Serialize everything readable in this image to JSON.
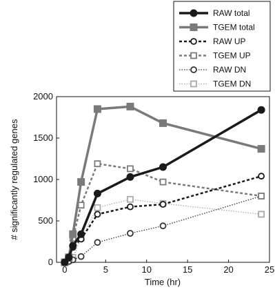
{
  "chart_data": {
    "type": "line",
    "title": "",
    "xlabel": "Time (hr)",
    "ylabel": "# significantly regulated genes",
    "xlim": [
      -1,
      25
    ],
    "ylim": [
      0,
      2000
    ],
    "xticks": [
      0,
      5,
      10,
      15,
      20,
      25
    ],
    "yticks": [
      0,
      500,
      1000,
      1500,
      2000
    ],
    "x": [
      0,
      0.5,
      1,
      2,
      4,
      8,
      12,
      24
    ],
    "grid": false,
    "legend_position": "top-right",
    "series": [
      {
        "name": "RAW total",
        "values": [
          0,
          60,
          200,
          340,
          830,
          1030,
          1150,
          1840
        ],
        "color": "#1a1a1a",
        "dash": "",
        "width": 3.5,
        "marker": "filled-circle"
      },
      {
        "name": "TGEM total",
        "values": [
          0,
          60,
          340,
          970,
          1850,
          1880,
          1680,
          1370
        ],
        "color": "#7a7a7a",
        "dash": "",
        "width": 3.5,
        "marker": "filled-square"
      },
      {
        "name": "RAW UP",
        "values": [
          0,
          50,
          180,
          280,
          580,
          670,
          700,
          1040
        ],
        "color": "#1a1a1a",
        "dash": "4,3",
        "width": 2.5,
        "marker": "open-circle"
      },
      {
        "name": "TGEM UP",
        "values": [
          0,
          50,
          290,
          690,
          1190,
          1130,
          970,
          800
        ],
        "color": "#7a7a7a",
        "dash": "4,3",
        "width": 2.5,
        "marker": "open-square"
      },
      {
        "name": "RAW DN",
        "values": [
          0,
          10,
          30,
          70,
          240,
          350,
          440,
          800
        ],
        "color": "#333333",
        "dash": "1.5,2",
        "width": 1.3,
        "marker": "open-circle"
      },
      {
        "name": "TGEM DN",
        "values": [
          0,
          20,
          60,
          290,
          660,
          760,
          710,
          580
        ],
        "color": "#aaaaaa",
        "dash": "1.5,2",
        "width": 1.3,
        "marker": "open-square"
      }
    ]
  }
}
